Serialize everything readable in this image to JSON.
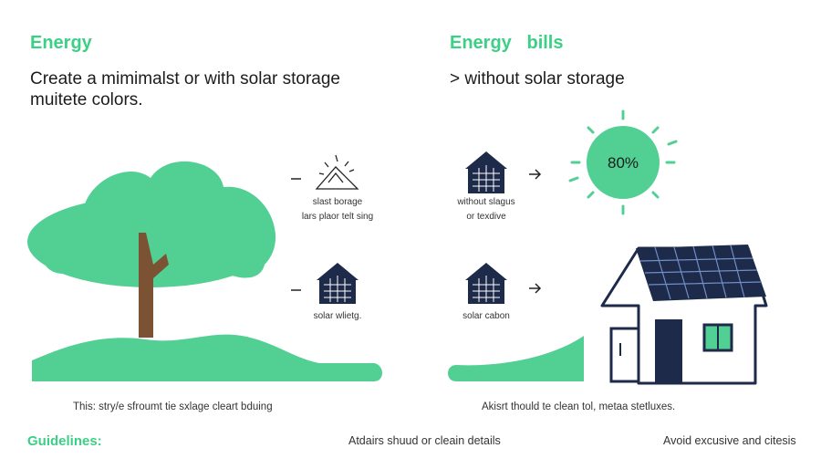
{
  "left_panel": {
    "title": "Energy",
    "description": [
      "Create a mimimalst or with solar storage",
      "muitete colors."
    ]
  },
  "right_panel": {
    "title": "Energy   bills",
    "subtitle": "> without solar storage"
  },
  "icons": {
    "storage": {
      "label": "slast borage",
      "caption": "lars plaor telt sing"
    },
    "solar_left": {
      "label": "solar wlietg."
    },
    "without": {
      "label": "without slagus",
      "caption": "or texdive"
    },
    "solar_right": {
      "label": "solar cabon"
    },
    "sun": {
      "label": "80%"
    }
  },
  "captions": {
    "left": "This: stry/e sfroumt tie sxlage cleart bduing",
    "right": "Akisrt thould te clean tol, metaa stetluxes."
  },
  "guidelines": {
    "title": "Guidelines:",
    "items": [
      "Atdairs shuud or cleain details",
      "Avoid excusive and citesis"
    ]
  }
}
